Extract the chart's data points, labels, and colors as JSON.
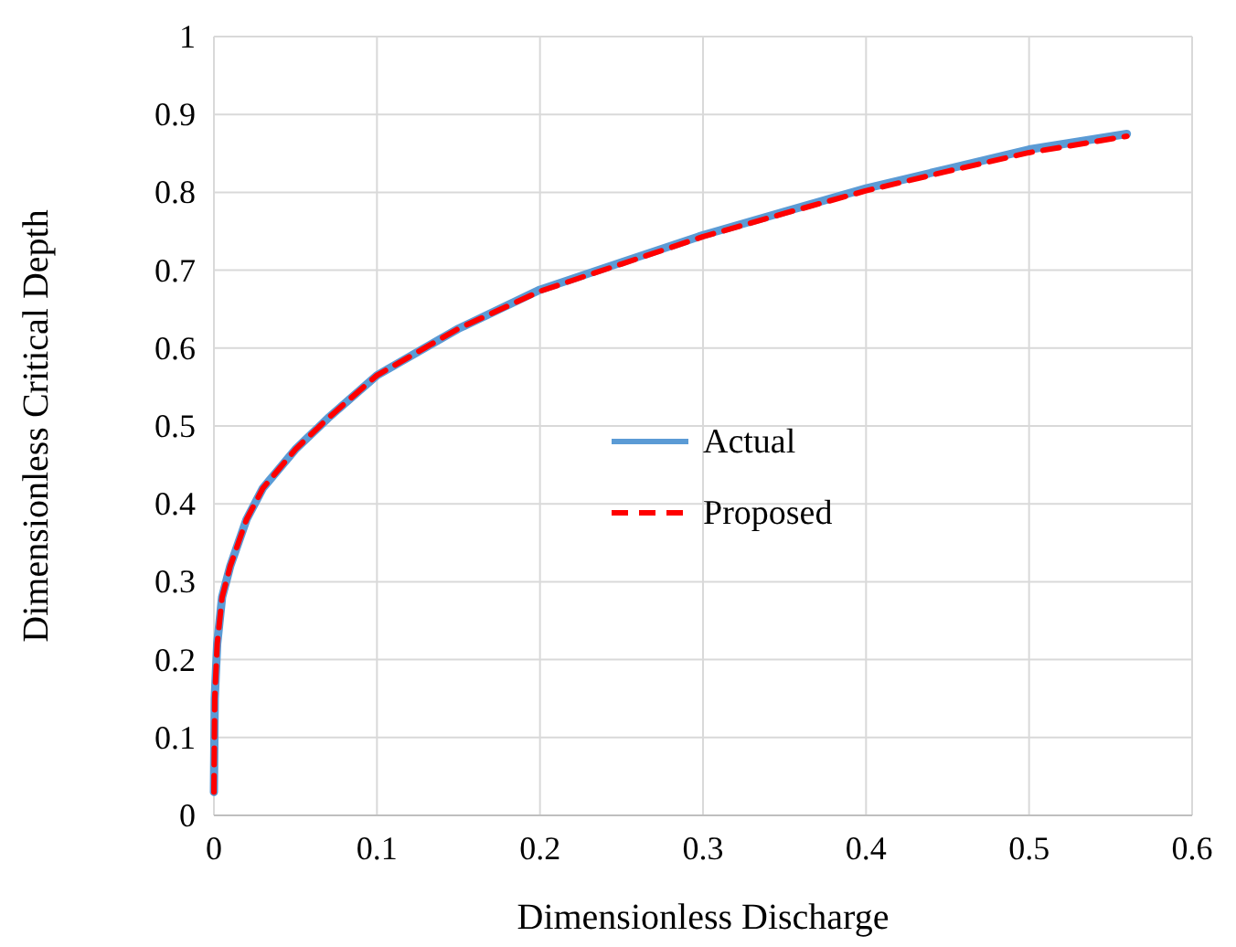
{
  "chart_data": {
    "type": "line",
    "xlabel": "Dimensionless Discharge",
    "ylabel": "Dimensionless Critical Depth",
    "x": [
      0,
      0.0005,
      0.002,
      0.005,
      0.01,
      0.02,
      0.03,
      0.05,
      0.07,
      0.1,
      0.15,
      0.2,
      0.25,
      0.3,
      0.35,
      0.4,
      0.45,
      0.5,
      0.56
    ],
    "series": [
      {
        "name": "Actual",
        "color": "#5b9bd5",
        "line_style": "solid",
        "values": [
          0.03,
          0.15,
          0.22,
          0.28,
          0.32,
          0.38,
          0.42,
          0.47,
          0.51,
          0.565,
          0.625,
          0.675,
          0.71,
          0.745,
          0.775,
          0.805,
          0.83,
          0.855,
          0.875
        ]
      },
      {
        "name": "Proposed",
        "color": "#ff0000",
        "line_style": "dashed",
        "values": [
          0.03,
          0.15,
          0.22,
          0.28,
          0.32,
          0.38,
          0.42,
          0.47,
          0.51,
          0.565,
          0.625,
          0.673,
          0.708,
          0.743,
          0.773,
          0.802,
          0.827,
          0.851,
          0.872
        ]
      }
    ],
    "xlim": [
      0,
      0.6
    ],
    "xticks": [
      0,
      0.1,
      0.2,
      0.3,
      0.4,
      0.5,
      0.6
    ],
    "ylim": [
      0,
      1
    ],
    "yticks": [
      0,
      0.1,
      0.2,
      0.3,
      0.4,
      0.5,
      0.6,
      0.7,
      0.8,
      0.9,
      1
    ],
    "grid": true,
    "legend": "right",
    "marker": "none"
  }
}
